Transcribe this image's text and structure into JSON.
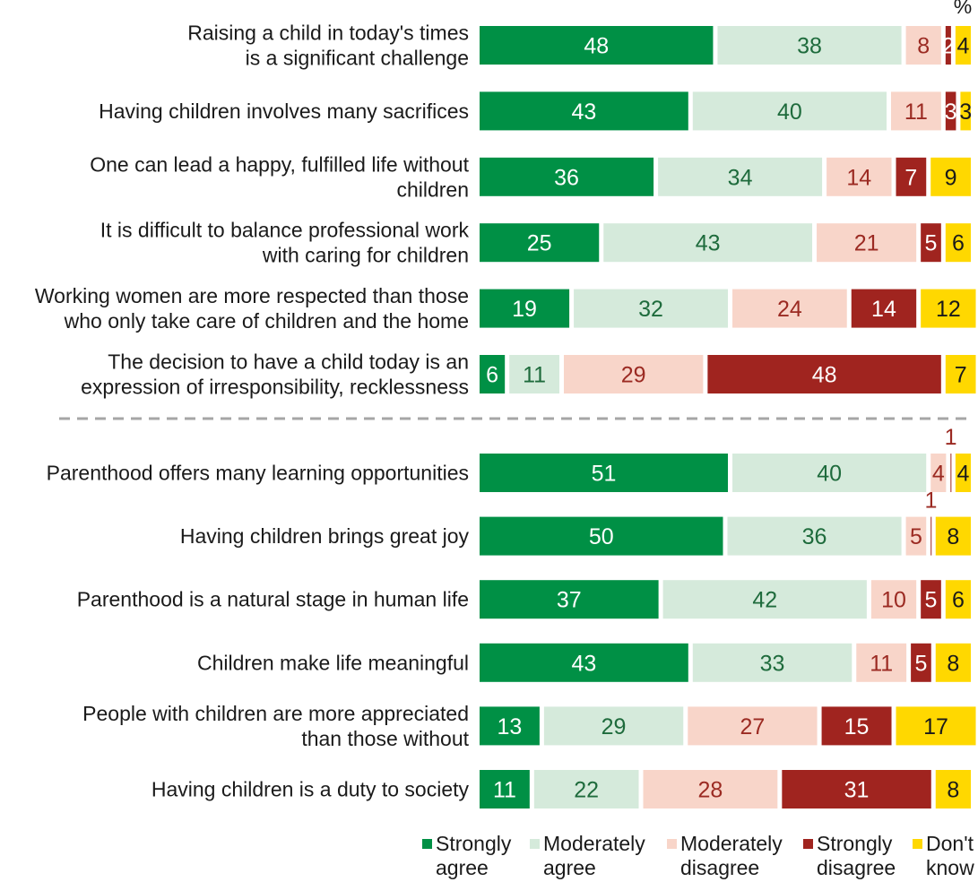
{
  "chart_data": {
    "type": "bar",
    "orientation": "horizontal",
    "stacked": true,
    "unit_label": "%",
    "series": [
      {
        "key": "sa",
        "name": "Strongly agree",
        "color": "#009045",
        "text_color": "#ffffff"
      },
      {
        "key": "ma",
        "name": "Moderately agree",
        "color": "#d5eadb",
        "text_color": "#1e6b3c"
      },
      {
        "key": "md",
        "name": "Moderately disagree",
        "color": "#f8d5c9",
        "text_color": "#9b2a22"
      },
      {
        "key": "sd",
        "name": "Strongly disagree",
        "color": "#a0241f",
        "text_color": "#ffffff"
      },
      {
        "key": "dk",
        "name": "Don't know",
        "color": "#ffd800",
        "text_color": "#1a1a1a"
      }
    ],
    "legend": [
      {
        "line1": "Strongly",
        "line2": "agree"
      },
      {
        "line1": "Moderately",
        "line2": "agree"
      },
      {
        "line1": "Moderately",
        "line2": "disagree"
      },
      {
        "line1": "Strongly",
        "line2": "disagree"
      },
      {
        "line1": "Don't",
        "line2": "know"
      }
    ],
    "groups": [
      {
        "rows": [
          {
            "label": [
              "Raising a child in today's times",
              "is a significant challenge"
            ],
            "values": [
              48,
              38,
              8,
              2,
              4
            ]
          },
          {
            "label": [
              "Having children involves many sacrifices"
            ],
            "values": [
              43,
              40,
              11,
              3,
              3
            ]
          },
          {
            "label": [
              "One can lead a happy, fulfilled life without",
              "children"
            ],
            "values": [
              36,
              34,
              14,
              7,
              9
            ]
          },
          {
            "label": [
              "It is difficult to balance professional work",
              "with caring for children"
            ],
            "values": [
              25,
              43,
              21,
              5,
              6
            ]
          },
          {
            "label": [
              "Working women are more respected than those",
              "who only take care of children and the home"
            ],
            "values": [
              19,
              32,
              24,
              14,
              12
            ]
          },
          {
            "label": [
              "The decision to have a child today is an",
              "expression of irresponsibility, recklessness"
            ],
            "values": [
              6,
              11,
              29,
              48,
              7
            ]
          }
        ]
      },
      {
        "rows": [
          {
            "label": [
              "Parenthood offers many learning opportunities"
            ],
            "values": [
              51,
              40,
              4,
              1,
              4
            ],
            "above_labels": {
              "3": true
            }
          },
          {
            "label": [
              "Having children brings great joy"
            ],
            "values": [
              50,
              36,
              5,
              1,
              8
            ],
            "above_labels": {
              "3": true
            }
          },
          {
            "label": [
              "Parenthood is a natural stage in human life"
            ],
            "values": [
              37,
              42,
              10,
              5,
              6
            ]
          },
          {
            "label": [
              "Children make life meaningful"
            ],
            "values": [
              43,
              33,
              11,
              5,
              8
            ]
          },
          {
            "label": [
              "People with children are more appreciated",
              "than those without"
            ],
            "values": [
              13,
              29,
              27,
              15,
              17
            ]
          },
          {
            "label": [
              "Having children is a duty to society"
            ],
            "values": [
              11,
              22,
              28,
              31,
              8
            ]
          }
        ]
      }
    ]
  }
}
